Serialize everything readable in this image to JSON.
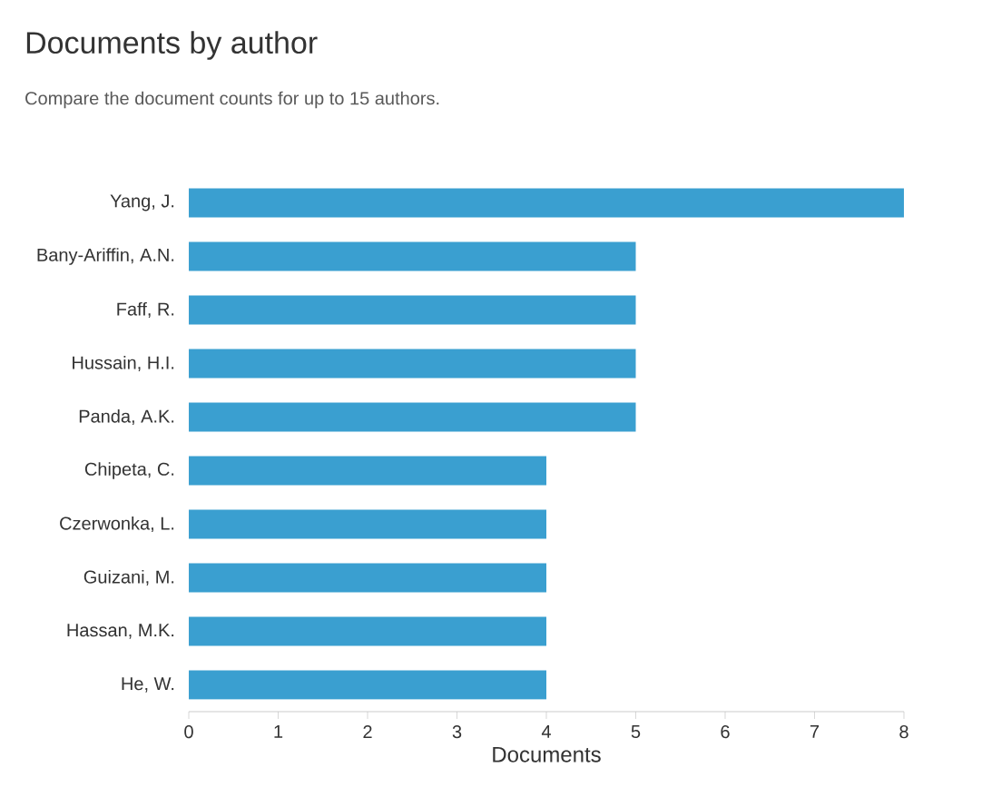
{
  "chart_data": {
    "type": "bar",
    "orientation": "horizontal",
    "title": "Documents by author",
    "subtitle": "Compare the document counts for up to 15 authors.",
    "xlabel": "Documents",
    "categories": [
      "Yang, J.",
      "Bany-Ariffin, A.N.",
      "Faff, R.",
      "Hussain, H.I.",
      "Panda, A.K.",
      "Chipeta, C.",
      "Czerwonka, L.",
      "Guizani, M.",
      "Hassan, M.K.",
      "He, W."
    ],
    "values": [
      8,
      5,
      5,
      5,
      5,
      4,
      4,
      4,
      4,
      4
    ],
    "color": "#3a9fd0",
    "xlim": [
      0,
      8
    ],
    "xticks": [
      0,
      1,
      2,
      3,
      4,
      5,
      6,
      7,
      8
    ]
  }
}
